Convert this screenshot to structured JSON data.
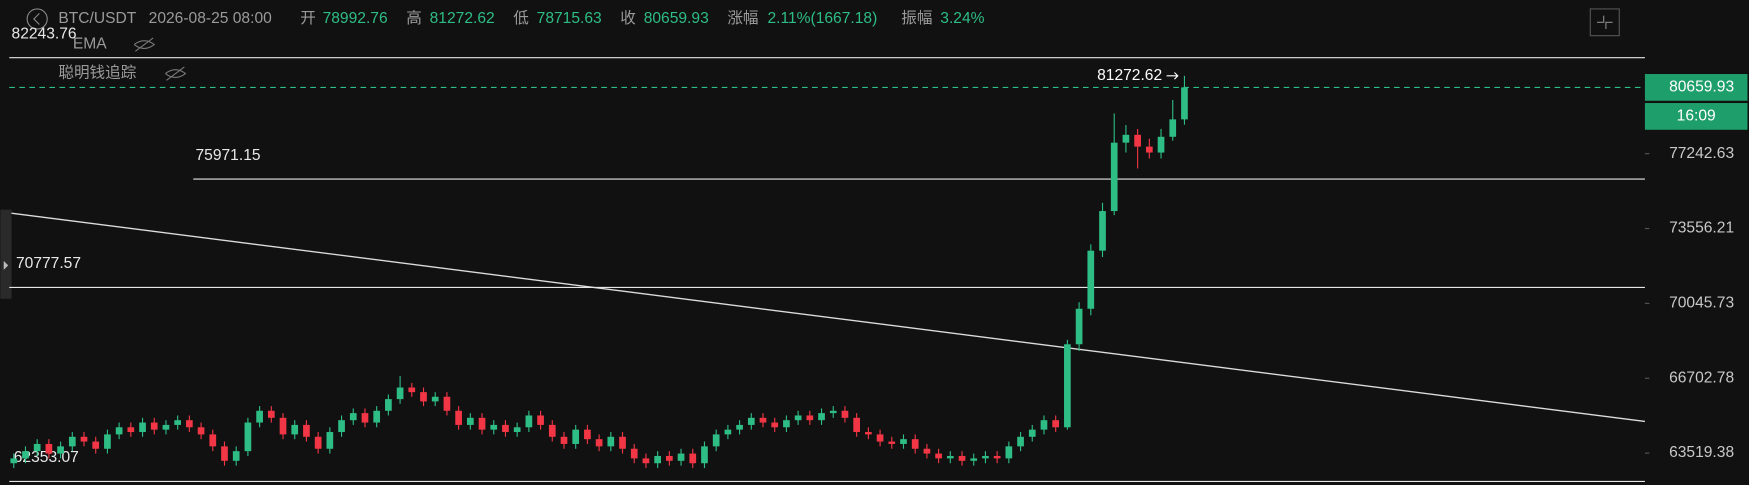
{
  "header": {
    "symbol": "BTC/USDT",
    "time": "2026-08-25 08:00",
    "stats": [
      {
        "label": "开",
        "value": "78992.76"
      },
      {
        "label": "高",
        "value": "81272.62"
      },
      {
        "label": "低",
        "value": "78715.63"
      },
      {
        "label": "收",
        "value": "80659.93"
      },
      {
        "label": "涨幅",
        "value": "2.11%(1667.18)"
      },
      {
        "label": "振幅",
        "value": "3.24%"
      }
    ],
    "indicators": [
      "EMA",
      "聪明钱追踪"
    ]
  },
  "chart_data": {
    "type": "candlestick",
    "log_scale": true,
    "up_color": "#2ebd85",
    "down_color": "#f23645",
    "ylim": [
      62300,
      85400
    ],
    "yticks": [
      77242.63,
      73556.21,
      70045.73,
      66702.78,
      63519.38
    ],
    "levels": [
      82243.76,
      75971.15,
      70777.57,
      62353.07
    ],
    "countdown": "16:09",
    "open": [
      63100,
      63300,
      63600,
      63900,
      63500,
      63800,
      64200,
      64000,
      63700,
      64300,
      64600,
      64400,
      64800,
      64500,
      64700,
      64900,
      64600,
      64300,
      63800,
      63200,
      63600,
      64800,
      65300,
      65000,
      64300,
      64700,
      64200,
      63700,
      64400,
      64900,
      65200,
      64800,
      65300,
      65800,
      66300,
      66100,
      65700,
      65900,
      65300,
      64700,
      65000,
      64500,
      64700,
      64400,
      64600,
      65100,
      64700,
      64200,
      63900,
      64500,
      64100,
      63800,
      64200,
      63700,
      63300,
      63100,
      63400,
      63200,
      63500,
      63100,
      63800,
      64300,
      64500,
      64700,
      65000,
      64800,
      64600,
      64900,
      65100,
      64900,
      65200,
      65300,
      65000,
      64400,
      64300,
      64000,
      63900,
      64100,
      63700,
      63500,
      63300,
      63400,
      63200,
      63300,
      63400,
      63300,
      63800,
      64200,
      64500,
      64900,
      64600,
      68200,
      69800,
      72500,
      74400,
      77800,
      78200,
      77600,
      77300,
      78100,
      78992.76
    ],
    "high": [
      63500,
      63800,
      64100,
      64100,
      64000,
      64400,
      64400,
      64200,
      64500,
      64800,
      64800,
      65000,
      65000,
      64900,
      65100,
      65100,
      64800,
      64500,
      64000,
      63800,
      65000,
      65500,
      65500,
      65200,
      64900,
      64900,
      64400,
      64600,
      65100,
      65400,
      65400,
      65500,
      66000,
      66800,
      66500,
      66300,
      66100,
      66100,
      65500,
      65200,
      65200,
      64900,
      64900,
      64800,
      65300,
      65300,
      64900,
      64400,
      64700,
      64700,
      64300,
      64400,
      64400,
      63900,
      63500,
      63600,
      63600,
      63700,
      63700,
      64000,
      64500,
      64700,
      64900,
      65200,
      65200,
      65000,
      65100,
      65300,
      65300,
      65400,
      65500,
      65500,
      65200,
      64600,
      64500,
      64200,
      64300,
      64300,
      63900,
      63700,
      63600,
      63600,
      63500,
      63600,
      63600,
      64000,
      64400,
      64700,
      65100,
      65100,
      68400,
      70100,
      72800,
      74800,
      79300,
      78700,
      78500,
      78000,
      78500,
      80000,
      81272.62
    ],
    "low": [
      62900,
      63100,
      63400,
      63300,
      63300,
      63600,
      63800,
      63500,
      63500,
      64100,
      64200,
      64200,
      64300,
      64300,
      64500,
      64400,
      64100,
      63600,
      63000,
      63000,
      63400,
      64600,
      64800,
      64100,
      64100,
      64000,
      63500,
      63500,
      64200,
      64700,
      64600,
      64600,
      65100,
      65600,
      65900,
      65500,
      65500,
      65100,
      64500,
      64500,
      64300,
      64300,
      64200,
      64200,
      64400,
      64500,
      64000,
      63700,
      63700,
      63900,
      63600,
      63600,
      63500,
      63100,
      62900,
      62900,
      63000,
      63000,
      62900,
      62900,
      63600,
      64100,
      64300,
      64500,
      64600,
      64400,
      64400,
      64700,
      64700,
      64700,
      65000,
      64800,
      64200,
      64100,
      63800,
      63700,
      63700,
      63500,
      63300,
      63100,
      63100,
      63000,
      63000,
      63100,
      63100,
      63100,
      63600,
      64000,
      64300,
      64400,
      64500,
      67900,
      69500,
      72200,
      74200,
      77300,
      76500,
      77000,
      77000,
      77900,
      78715.63
    ],
    "close": [
      63300,
      63600,
      63900,
      63500,
      63800,
      64200,
      64000,
      63700,
      64300,
      64600,
      64400,
      64800,
      64500,
      64700,
      64900,
      64600,
      64300,
      63800,
      63200,
      63600,
      64800,
      65300,
      65000,
      64300,
      64700,
      64200,
      63700,
      64400,
      64900,
      65200,
      64800,
      65300,
      65800,
      66300,
      66100,
      65700,
      65900,
      65300,
      64700,
      65000,
      64500,
      64700,
      64400,
      64600,
      65100,
      64700,
      64200,
      63900,
      64500,
      64100,
      63800,
      64200,
      63700,
      63300,
      63100,
      63400,
      63200,
      63500,
      63100,
      63800,
      64300,
      64500,
      64700,
      65000,
      64800,
      64600,
      64900,
      65100,
      64900,
      65200,
      65300,
      65000,
      64400,
      64300,
      64000,
      63900,
      64100,
      63700,
      63500,
      63300,
      63400,
      63200,
      63300,
      63400,
      63300,
      63800,
      64200,
      64500,
      64900,
      64600,
      68200,
      69800,
      72500,
      74400,
      77800,
      78200,
      77600,
      77300,
      78100,
      78992.76,
      80659.93
    ]
  }
}
